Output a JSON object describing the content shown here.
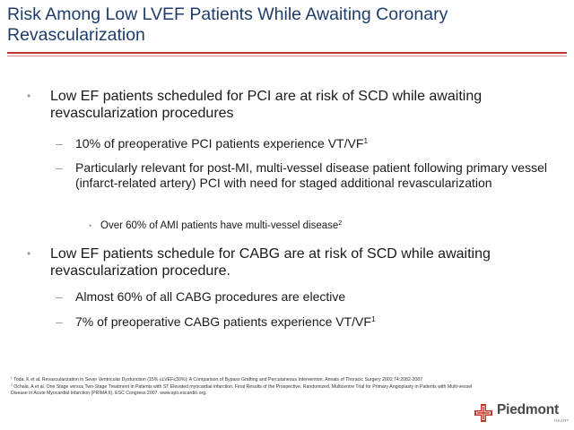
{
  "slide": {
    "title": "Risk Among Low LVEF Patients While Awaiting Coronary Revascularization",
    "bullets": [
      {
        "text": "Low EF patients scheduled for PCI are at risk of SCD while awaiting revascularization procedures",
        "sub": [
          {
            "text": "10% of preoperative PCI patients experience VT/VF",
            "sup": "1"
          },
          {
            "text": "Particularly relevant for post-MI, multi-vessel disease patient following primary vessel (infarct-related artery) PCI with need for staged additional revascularization"
          }
        ],
        "subsub": {
          "text": "Over 60% of AMI patients have multi-vessel disease",
          "sup": "2"
        }
      },
      {
        "text": "Low EF patients schedule for CABG are at risk of SCD while awaiting revascularization procedure.",
        "sub": [
          {
            "text": "Almost 60% of all CABG procedures are elective"
          },
          {
            "text": "7% of preoperative CABG patients experience VT/VF",
            "sup": "1"
          }
        ]
      }
    ],
    "footnotes": [
      {
        "num": "1",
        "text": "Toda, K et al. Revascularization in Sever Ventricular Dysfunction (15% ≤LVEF≤30%): A Comparison of Bypass Grafting and Percutaneous Intervention. Annals of Thoracic Surgery 2002;74:2082-2087"
      },
      {
        "num": "2",
        "text": "Ochala, A et al. One Stage versus Two-Stage Treatment in Patients with ST Elevated myocardial infarction. Final Results of the Prospective, Randomized, Multicentre Trial for Primary Angioplasty in Patients with Multi-vessel Disease in Acute Myocardial Infarction (PRIMA II). ESC Congress 2007. www.spo.escardio.org."
      }
    ]
  },
  "logo": {
    "name": "Piedmont",
    "sub": "HEART",
    "icon": "piedmont-cross-icon",
    "color": "#c0392b"
  },
  "colors": {
    "title": "#1f3d6b",
    "rule": "#c0392b",
    "bullet_mark": "#9a9a9a"
  }
}
